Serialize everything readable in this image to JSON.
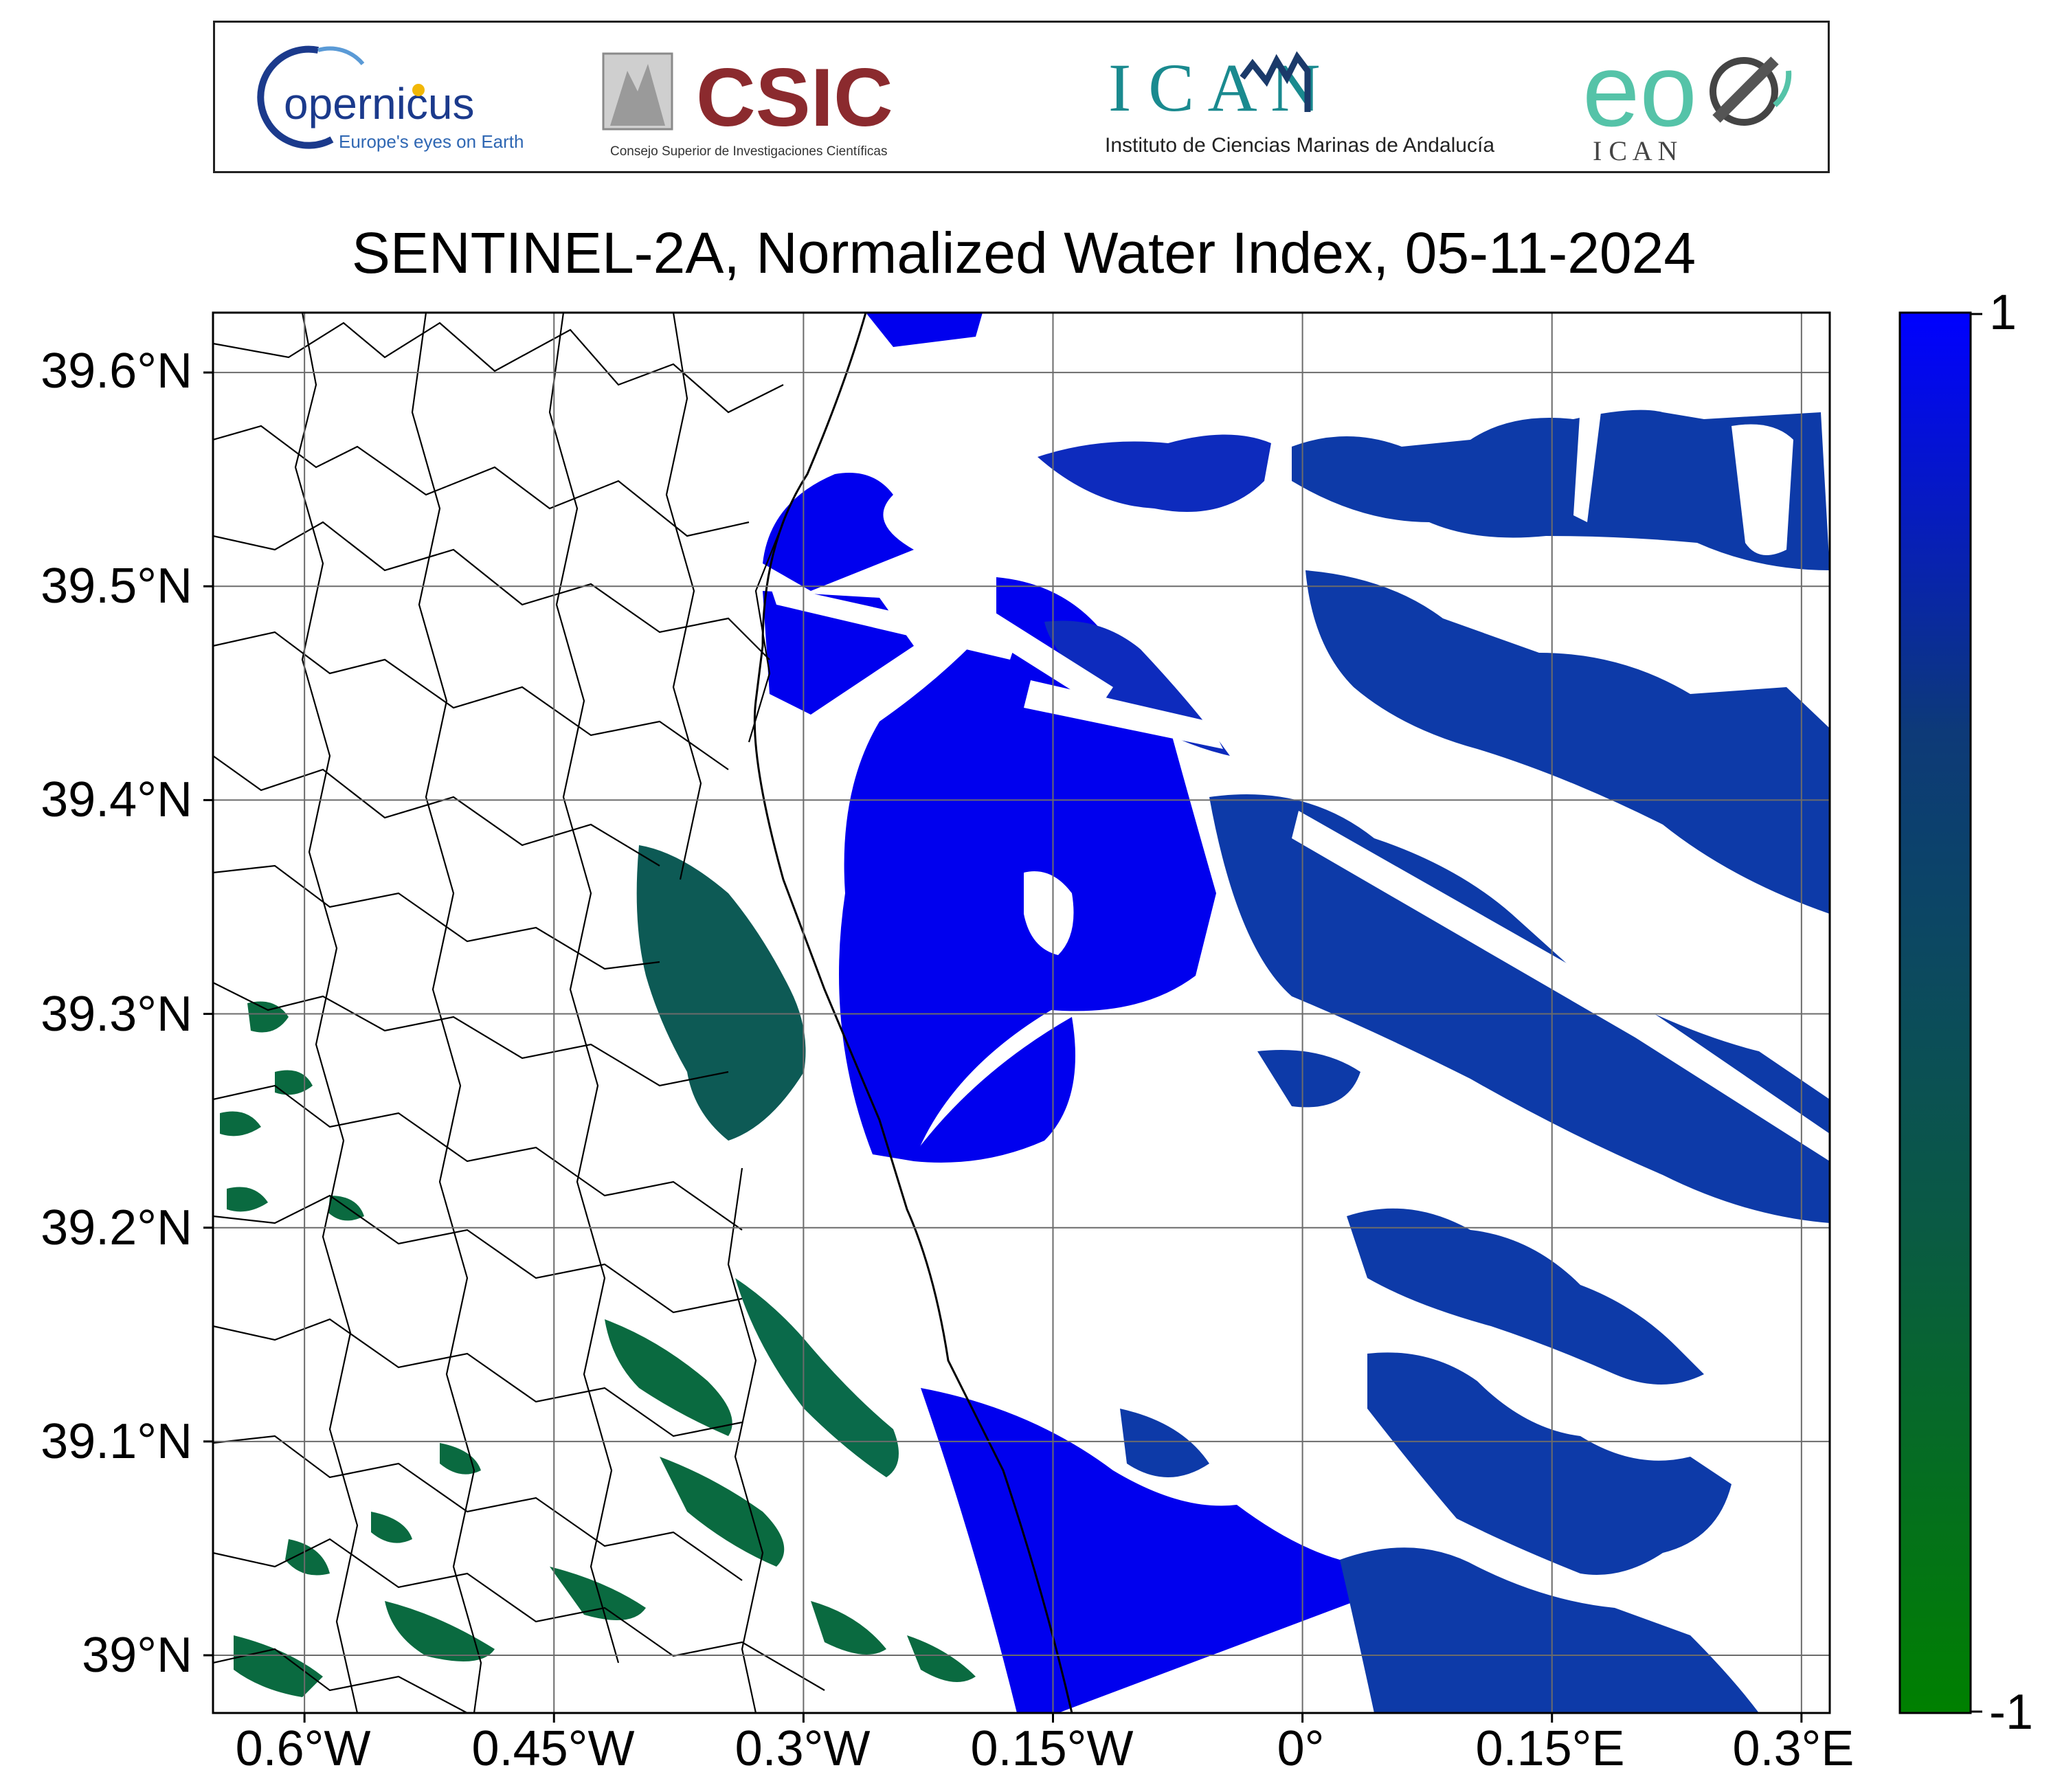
{
  "title": "SENTINEL-2A, Normalized Water Index, 05-11-2024",
  "logos": [
    {
      "name": "Copernicus",
      "main_text": "opernicus",
      "sub_text": "Europe's eyes on Earth"
    },
    {
      "name": "CSIC",
      "main_text": "CSIC",
      "sub_text": "Consejo Superior de Investigaciones Científicas"
    },
    {
      "name": "ICMAN",
      "main_text": "I C  A N",
      "sub_text": "Instituto de Ciencias Marinas de Andalucía"
    },
    {
      "name": "eo ICMAN",
      "main_text": "eo",
      "sub_text": "I C  A N"
    }
  ],
  "map": {
    "latitude_labels": [
      "39.6°N",
      "39.5°N",
      "39.4°N",
      "39.3°N",
      "39.2°N",
      "39.1°N",
      "39°N"
    ],
    "longitude_labels": [
      "0.6°W",
      "0.45°W",
      "0.3°W",
      "0.15°W",
      "0°",
      "0.15°E",
      "0.3°E"
    ],
    "latitude_values": [
      39.6,
      39.5,
      39.4,
      39.3,
      39.2,
      39.1,
      39.0
    ],
    "longitude_values": [
      -0.6,
      -0.45,
      -0.3,
      -0.15,
      0.0,
      0.15,
      0.3
    ],
    "extent": {
      "lon_min": -0.655,
      "lon_max": 0.317,
      "lat_min": 38.973,
      "lat_max": 39.628
    },
    "gridlines": true,
    "boundaries": "municipal"
  },
  "colorbar": {
    "label_max": "1",
    "label_min": "-1",
    "min": -1,
    "max": 1,
    "colors": [
      "#008000",
      "#0a5a44",
      "#0d3a78",
      "#0000ff"
    ]
  }
}
